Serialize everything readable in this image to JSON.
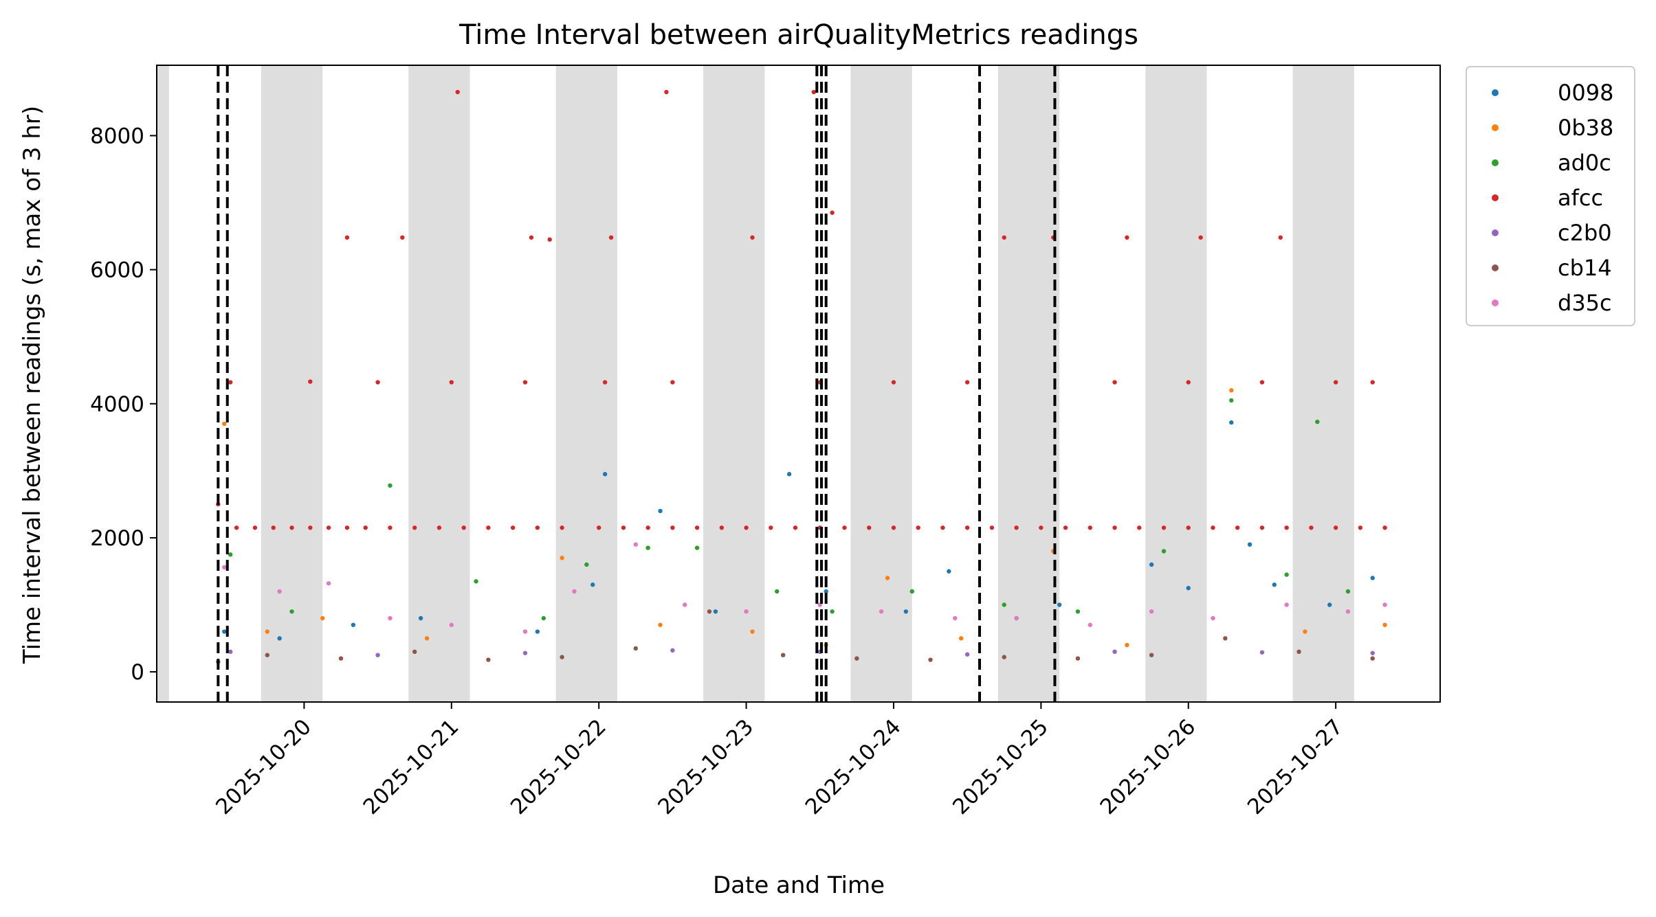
{
  "chart_data": {
    "type": "scatter",
    "title": "Time Interval between airQualityMetrics readings",
    "xlabel": "Date and Time",
    "ylabel": "Time interval between readings (s, max of 3 hr)",
    "x_ticks": [
      "2025-10-20",
      "2025-10-21",
      "2025-10-22",
      "2025-10-23",
      "2025-10-24",
      "2025-10-25",
      "2025-10-26",
      "2025-10-27"
    ],
    "y_ticks": [
      0,
      2000,
      4000,
      6000,
      8000
    ],
    "xlim": [
      "2025-10-19T00:00",
      "2025-10-27T17:00"
    ],
    "ylim": [
      -450,
      9050
    ],
    "legend": {
      "placement": "outside-right-top"
    },
    "shaded_bands": [
      [
        "2025-10-19T00:00",
        "2025-10-19T02:00"
      ],
      [
        "2025-10-19T17:00",
        "2025-10-20T03:00"
      ],
      [
        "2025-10-20T17:00",
        "2025-10-21T03:00"
      ],
      [
        "2025-10-21T17:00",
        "2025-10-22T03:00"
      ],
      [
        "2025-10-22T17:00",
        "2025-10-23T03:00"
      ],
      [
        "2025-10-23T17:00",
        "2025-10-24T03:00"
      ],
      [
        "2025-10-24T17:00",
        "2025-10-25T03:00"
      ],
      [
        "2025-10-25T17:00",
        "2025-10-26T03:00"
      ],
      [
        "2025-10-26T17:00",
        "2025-10-27T03:00"
      ]
    ],
    "vlines": [
      "2025-10-19T10:00",
      "2025-10-19T11:30",
      "2025-10-23T11:30",
      "2025-10-23T12:15",
      "2025-10-23T13:00",
      "2025-10-24T14:00",
      "2025-10-25T02:15"
    ],
    "series": [
      {
        "name": "0098",
        "color": "#1f77b4",
        "x": [
          "2025-10-19T11:00",
          "2025-10-19T20:00",
          "2025-10-20T08:00",
          "2025-10-20T19:00",
          "2025-10-21T14:00",
          "2025-10-21T23:00",
          "2025-10-22T01:00",
          "2025-10-22T10:00",
          "2025-10-22T19:00",
          "2025-10-23T07:00",
          "2025-10-23T13:00",
          "2025-10-24T02:00",
          "2025-10-24T09:00",
          "2025-10-24T20:00",
          "2025-10-25T03:00",
          "2025-10-25T18:00",
          "2025-10-26T00:00",
          "2025-10-26T07:00",
          "2025-10-26T10:00",
          "2025-10-26T14:00",
          "2025-10-26T23:00",
          "2025-10-27T06:00"
        ],
        "y": [
          600,
          500,
          700,
          800,
          600,
          1300,
          2950,
          2400,
          900,
          2950,
          1200,
          900,
          1500,
          800,
          1000,
          1600,
          1250,
          3720,
          1900,
          1300,
          1000,
          1400
        ]
      },
      {
        "name": "0b38",
        "color": "#ff7f0e",
        "x": [
          "2025-10-19T11:00",
          "2025-10-19T18:00",
          "2025-10-20T03:00",
          "2025-10-20T20:00",
          "2025-10-21T18:00",
          "2025-10-22T10:00",
          "2025-10-23T01:00",
          "2025-10-23T13:00",
          "2025-10-23T23:00",
          "2025-10-24T11:00",
          "2025-10-25T02:00",
          "2025-10-25T14:00",
          "2025-10-26T07:00",
          "2025-10-26T19:00",
          "2025-10-27T08:00"
        ],
        "y": [
          3700,
          600,
          800,
          500,
          1700,
          700,
          600,
          400,
          1400,
          500,
          1800,
          400,
          4200,
          600,
          700
        ]
      },
      {
        "name": "ad0c",
        "color": "#2ca02c",
        "x": [
          "2025-10-19T12:00",
          "2025-10-19T22:00",
          "2025-10-20T14:00",
          "2025-10-21T04:00",
          "2025-10-21T15:00",
          "2025-10-21T22:00",
          "2025-10-22T08:00",
          "2025-10-22T16:00",
          "2025-10-23T05:00",
          "2025-10-23T14:00",
          "2025-10-24T03:00",
          "2025-10-24T18:00",
          "2025-10-25T06:00",
          "2025-10-25T20:00",
          "2025-10-26T07:00",
          "2025-10-26T16:00",
          "2025-10-26T21:00",
          "2025-10-27T02:00"
        ],
        "y": [
          1750,
          900,
          2780,
          1350,
          800,
          1600,
          1850,
          1850,
          1200,
          900,
          1200,
          1000,
          900,
          1800,
          4050,
          1450,
          3730,
          1200
        ]
      },
      {
        "name": "afcc",
        "color": "#d62728",
        "x": [
          "2025-10-19T10:00",
          "2025-10-19T13:00",
          "2025-10-19T16:00",
          "2025-10-19T19:00",
          "2025-10-19T22:00",
          "2025-10-20T01:00",
          "2025-10-20T04:00",
          "2025-10-20T07:00",
          "2025-10-20T10:00",
          "2025-10-20T14:00",
          "2025-10-20T18:00",
          "2025-10-20T22:00",
          "2025-10-21T02:00",
          "2025-10-21T06:00",
          "2025-10-21T10:00",
          "2025-10-21T14:00",
          "2025-10-21T18:00",
          "2025-10-22T00:00",
          "2025-10-22T04:00",
          "2025-10-22T08:00",
          "2025-10-22T12:00",
          "2025-10-22T16:00",
          "2025-10-22T20:00",
          "2025-10-23T00:00",
          "2025-10-23T04:00",
          "2025-10-23T08:00",
          "2025-10-23T12:00",
          "2025-10-23T16:00",
          "2025-10-23T20:00",
          "2025-10-24T00:00",
          "2025-10-24T04:00",
          "2025-10-24T08:00",
          "2025-10-24T12:00",
          "2025-10-24T16:00",
          "2025-10-24T20:00",
          "2025-10-25T00:00",
          "2025-10-25T04:00",
          "2025-10-25T08:00",
          "2025-10-25T12:00",
          "2025-10-25T16:00",
          "2025-10-25T20:00",
          "2025-10-26T00:00",
          "2025-10-26T04:00",
          "2025-10-26T08:00",
          "2025-10-26T12:00",
          "2025-10-26T16:00",
          "2025-10-26T20:00",
          "2025-10-27T00:00",
          "2025-10-27T04:00",
          "2025-10-27T08:00",
          "2025-10-20T07:00",
          "2025-10-20T16:00",
          "2025-10-21T13:00",
          "2025-10-21T16:00",
          "2025-10-22T02:00",
          "2025-10-23T01:00",
          "2025-10-24T18:00",
          "2025-10-25T02:00",
          "2025-10-25T14:00",
          "2025-10-26T02:00",
          "2025-10-26T15:00",
          "2025-10-21T01:00",
          "2025-10-22T11:00",
          "2025-10-23T11:00",
          "2025-10-23T14:00",
          "2025-10-19T12:00",
          "2025-10-20T01:00",
          "2025-10-20T12:00",
          "2025-10-21T00:00",
          "2025-10-21T12:00",
          "2025-10-22T01:00",
          "2025-10-22T12:00",
          "2025-10-23T12:00",
          "2025-10-24T00:00",
          "2025-10-24T12:00",
          "2025-10-25T12:00",
          "2025-10-26T00:00",
          "2025-10-26T12:00",
          "2025-10-27T00:00",
          "2025-10-27T06:00"
        ],
        "y": [
          2500,
          2150,
          2150,
          2150,
          2150,
          2150,
          2150,
          2150,
          2150,
          2150,
          2150,
          2150,
          2150,
          2150,
          2150,
          2150,
          2150,
          2150,
          2150,
          2150,
          2150,
          2150,
          2150,
          2150,
          2150,
          2150,
          2150,
          2150,
          2150,
          2150,
          2150,
          2150,
          2150,
          2150,
          2150,
          2150,
          2150,
          2150,
          2150,
          2150,
          2150,
          2150,
          2150,
          2150,
          2150,
          2150,
          2150,
          2150,
          2150,
          2150,
          6480,
          6480,
          6480,
          6450,
          6480,
          6480,
          6480,
          6480,
          6480,
          6480,
          6480,
          8650,
          8650,
          8650,
          6850,
          4320,
          4330,
          4320,
          4320,
          4320,
          4320,
          4320,
          4320,
          4320,
          4320,
          4320,
          4320,
          4320,
          4320,
          4320
        ]
      },
      {
        "name": "c2b0",
        "color": "#9467bd",
        "x": [
          "2025-10-19T12:00",
          "2025-10-20T12:00",
          "2025-10-21T12:00",
          "2025-10-22T12:00",
          "2025-10-23T12:00",
          "2025-10-24T12:00",
          "2025-10-25T12:00",
          "2025-10-26T12:00",
          "2025-10-27T06:00"
        ],
        "y": [
          300,
          250,
          280,
          320,
          300,
          260,
          300,
          290,
          280
        ]
      },
      {
        "name": "cb14",
        "color": "#8c564b",
        "x": [
          "2025-10-19T10:00",
          "2025-10-19T18:00",
          "2025-10-20T06:00",
          "2025-10-20T18:00",
          "2025-10-21T06:00",
          "2025-10-21T18:00",
          "2025-10-22T06:00",
          "2025-10-22T18:00",
          "2025-10-23T06:00",
          "2025-10-23T18:00",
          "2025-10-24T06:00",
          "2025-10-24T18:00",
          "2025-10-25T06:00",
          "2025-10-25T18:00",
          "2025-10-26T06:00",
          "2025-10-26T18:00",
          "2025-10-27T06:00"
        ],
        "y": [
          150,
          250,
          200,
          300,
          180,
          220,
          350,
          900,
          250,
          200,
          180,
          220,
          200,
          250,
          500,
          300,
          200
        ]
      },
      {
        "name": "d35c",
        "color": "#e377c2",
        "x": [
          "2025-10-19T11:00",
          "2025-10-19T20:00",
          "2025-10-20T04:00",
          "2025-10-20T14:00",
          "2025-10-21T00:00",
          "2025-10-21T12:00",
          "2025-10-21T20:00",
          "2025-10-22T06:00",
          "2025-10-22T14:00",
          "2025-10-23T00:00",
          "2025-10-23T12:00",
          "2025-10-23T22:00",
          "2025-10-24T10:00",
          "2025-10-24T20:00",
          "2025-10-25T08:00",
          "2025-10-25T18:00",
          "2025-10-26T04:00",
          "2025-10-26T16:00",
          "2025-10-27T02:00",
          "2025-10-27T08:00"
        ],
        "y": [
          1560,
          1200,
          1320,
          800,
          700,
          600,
          1200,
          1900,
          1000,
          900,
          1000,
          900,
          800,
          800,
          700,
          900,
          800,
          1000,
          900,
          1000
        ]
      }
    ]
  }
}
